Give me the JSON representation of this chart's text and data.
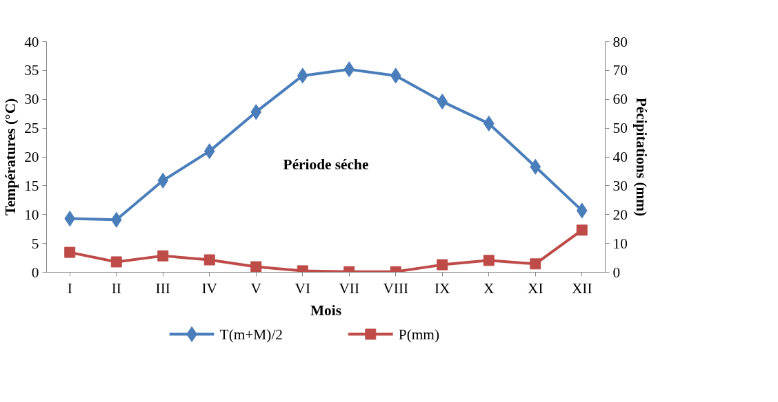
{
  "chart_data": {
    "type": "line",
    "xlabel": "Mois",
    "ylabel": "Températures (°C)",
    "y2label": "Pécipitations (mm)",
    "categories": [
      "I",
      "II",
      "III",
      "IV",
      "V",
      "VI",
      "VII",
      "VIII",
      "IX",
      "X",
      "XI",
      "XII"
    ],
    "series": [
      {
        "name": "T(m+M)/2",
        "color": "#4a7ebb",
        "marker": "diamond",
        "values": [
          9.3,
          9.1,
          15.9,
          21.0,
          27.8,
          34.1,
          35.2,
          34.1,
          29.6,
          25.8,
          18.3,
          10.7
        ]
      },
      {
        "name": "P(mm)",
        "color": "#be4b48",
        "marker": "square",
        "axis": "y2",
        "values": [
          6.9,
          3.6,
          5.7,
          4.3,
          1.9,
          0.5,
          0.2,
          0.2,
          2.6,
          4.1,
          2.9,
          14.6
        ]
      }
    ],
    "ylim": [
      0,
      40
    ],
    "yticks": [
      0,
      5,
      10,
      15,
      20,
      25,
      30,
      35,
      40
    ],
    "y2lim": [
      0,
      80
    ],
    "y2ticks": [
      0,
      10,
      20,
      30,
      40,
      50,
      60,
      70,
      80
    ],
    "annotations": [
      "Période séche"
    ],
    "grid": false,
    "legend": "bottom",
    "line_style": "solid"
  }
}
